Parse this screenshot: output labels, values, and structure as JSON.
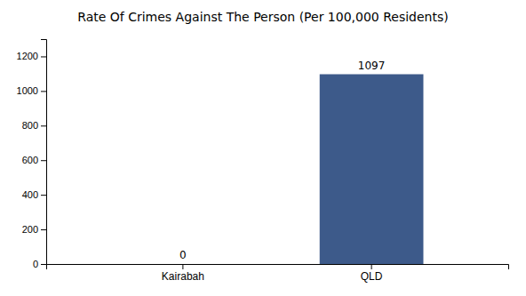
{
  "chart_data": {
    "type": "bar",
    "title": "Rate Of Crimes Against The Person (Per 100,000 Residents)",
    "categories": [
      "Kairabah",
      "QLD"
    ],
    "values": [
      0,
      1097
    ],
    "color": "#3d5a8a",
    "ylim": [
      0,
      1300
    ],
    "yticks": [
      0,
      200,
      400,
      600,
      800,
      1000,
      1200
    ],
    "grid": false,
    "data_labels": true
  }
}
